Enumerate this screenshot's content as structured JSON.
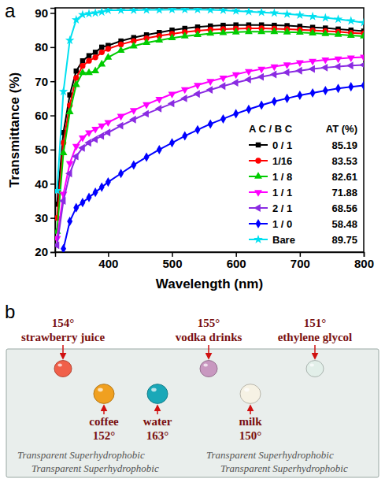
{
  "chart_data": {
    "type": "line",
    "panel_label": "a",
    "x_label": "Wavelength (nm)",
    "y_label": "Transmittance (%)",
    "x": [
      320,
      330,
      340,
      350,
      360,
      370,
      380,
      390,
      400,
      420,
      440,
      460,
      480,
      500,
      520,
      540,
      560,
      580,
      600,
      620,
      640,
      660,
      680,
      700,
      720,
      740,
      760,
      780,
      800
    ],
    "xlim": [
      317,
      800
    ],
    "xticks": [
      400,
      500,
      600,
      700,
      800
    ],
    "ylim": [
      20,
      91.5
    ],
    "yticks": [
      20,
      30,
      40,
      50,
      60,
      70,
      80,
      90
    ],
    "grid": false,
    "legend": "bottom-right",
    "legend_headers": [
      "A C / B C",
      "AT (%)"
    ],
    "series": [
      {
        "name": "0 / 1",
        "color": "#000000",
        "marker": "square",
        "at": 85.19,
        "values": [
          34,
          55,
          66,
          73,
          76,
          77.5,
          78.5,
          80,
          80.5,
          81.8,
          82.8,
          83.6,
          84.3,
          85,
          85.5,
          85.9,
          86.2,
          86.4,
          86.5,
          86.5,
          86.5,
          86.4,
          86.3,
          86.1,
          85.8,
          85.6,
          85.3,
          85,
          84.7
        ]
      },
      {
        "name": "1/16",
        "color": "#ff0000",
        "marker": "circle",
        "at": 83.53,
        "values": [
          30,
          52,
          63,
          71,
          74.5,
          76,
          77,
          78.5,
          79.5,
          80.8,
          81.8,
          82.6,
          83.3,
          83.9,
          84.4,
          84.8,
          85.1,
          85.3,
          85.4,
          85.5,
          85.5,
          85.4,
          85.3,
          85.1,
          84.9,
          84.7,
          84.5,
          84.2,
          84
        ]
      },
      {
        "name": "1 / 8",
        "color": "#00cc00",
        "marker": "triangle-up",
        "at": 82.61,
        "values": [
          26,
          49,
          61,
          69,
          72.5,
          72.5,
          73,
          75,
          77,
          79,
          80.3,
          81.3,
          82,
          82.7,
          83.2,
          83.6,
          84,
          84.2,
          84.4,
          84.5,
          84.5,
          84.5,
          84.4,
          84.3,
          84.1,
          83.9,
          83.7,
          83.4,
          83.2
        ]
      },
      {
        "name": "1 / 1",
        "color": "#ff00ff",
        "marker": "triangle-down",
        "at": 71.88,
        "values": [
          24,
          37,
          46,
          51,
          53.5,
          55,
          56,
          57,
          58,
          59.8,
          61.5,
          63.2,
          64.8,
          66.3,
          67.6,
          68.9,
          70,
          71,
          72,
          72.9,
          73.6,
          74.3,
          74.9,
          75.5,
          75.9,
          76.3,
          76.6,
          76.9,
          77.1
        ]
      },
      {
        "name": "2 / 1",
        "color": "#8a2be2",
        "marker": "triangle-left",
        "at": 68.56,
        "values": [
          22,
          35,
          43,
          48,
          50.5,
          52,
          53,
          54,
          55,
          57,
          58.8,
          60.5,
          62,
          63.5,
          65,
          66.3,
          67.5,
          68.6,
          69.6,
          70.5,
          71.3,
          72,
          72.6,
          73.1,
          73.6,
          74,
          74.3,
          74.6,
          74.8
        ]
      },
      {
        "name": "1 / 0",
        "color": "#0000ff",
        "marker": "diamond",
        "at": 58.48,
        "values": [
          null,
          21,
          29,
          33,
          34.5,
          36,
          37.5,
          39,
          40.5,
          43,
          45.5,
          47.8,
          50,
          52,
          54,
          55.8,
          57.5,
          59,
          60.5,
          61.8,
          63,
          64.1,
          65,
          65.9,
          66.6,
          67.3,
          67.9,
          68.4,
          68.8
        ]
      },
      {
        "name": "Bare",
        "color": "#00e0f0",
        "marker": "star",
        "at": 89.75,
        "values": [
          38,
          67,
          82,
          88,
          89.5,
          89.8,
          90,
          90.3,
          90.8,
          90.8,
          90.8,
          90.9,
          90.9,
          91,
          91,
          91,
          90.9,
          90.8,
          90.6,
          90.4,
          90.2,
          90,
          89.7,
          89.4,
          89,
          88.6,
          88.2,
          87.7,
          87.2
        ]
      }
    ]
  },
  "photo": {
    "label": "b",
    "background_text": "Transparent Superhydrophobic",
    "droplets": [
      {
        "name": "strawberry juice",
        "angle": "154°",
        "color": "#f0604a"
      },
      {
        "name": "coffee",
        "angle": "152°",
        "color": "#f0a020"
      },
      {
        "name": "water",
        "angle": "163°",
        "color": "#1aa8b8"
      },
      {
        "name": "vodka drinks",
        "angle": "155°",
        "color": "#c898c0"
      },
      {
        "name": "milk",
        "angle": "150°",
        "color": "#f6f2e4"
      },
      {
        "name": "ethylene glycol",
        "angle": "151°",
        "color": "#e2efe9"
      }
    ]
  }
}
